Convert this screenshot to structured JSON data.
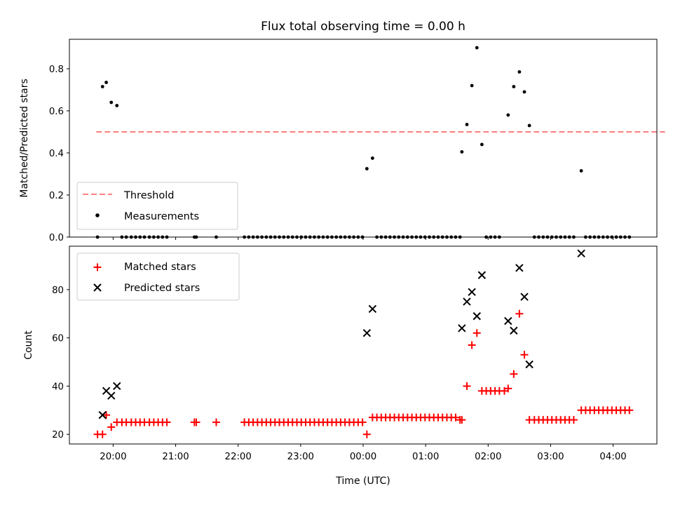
{
  "chart_data": [
    {
      "type": "scatter",
      "title": "Flux total observing time = 0.00 h",
      "xlabel": "",
      "ylabel": "Matched/Predicted stars",
      "x_unit": "hours since 19:00 UTC",
      "xlim": [
        0.3,
        9.7
      ],
      "ylim": [
        0,
        0.94
      ],
      "yticks": [
        "0.0",
        "0.2",
        "0.4",
        "0.6",
        "0.8"
      ],
      "ytick_values": [
        0,
        0.2,
        0.4,
        0.6,
        0.8
      ],
      "grid": false,
      "legend": "lower-left",
      "threshold": {
        "name": "Threshold",
        "value": 0.5,
        "x_range": [
          0.73,
          9.83
        ],
        "color": "#ff8080"
      },
      "series": [
        {
          "name": "Measurements",
          "color": "#000000",
          "points": [
            [
              0.75,
              0
            ],
            [
              0.83,
              0.715
            ],
            [
              0.89,
              0.735
            ],
            [
              0.97,
              0.64
            ],
            [
              1.06,
              0.625
            ],
            [
              1.14,
              0
            ],
            [
              1.21,
              0
            ],
            [
              1.29,
              0
            ],
            [
              1.36,
              0
            ],
            [
              1.43,
              0
            ],
            [
              1.5,
              0
            ],
            [
              1.58,
              0
            ],
            [
              1.65,
              0
            ],
            [
              1.72,
              0
            ],
            [
              1.79,
              0
            ],
            [
              1.86,
              0
            ],
            [
              2.3,
              0
            ],
            [
              2.33,
              0
            ],
            [
              2.65,
              0
            ],
            [
              3.1,
              0
            ],
            [
              3.17,
              0
            ],
            [
              3.24,
              0
            ],
            [
              3.31,
              0
            ],
            [
              3.38,
              0
            ],
            [
              3.45,
              0
            ],
            [
              3.52,
              0
            ],
            [
              3.59,
              0
            ],
            [
              3.66,
              0
            ],
            [
              3.73,
              0
            ],
            [
              3.8,
              0
            ],
            [
              3.87,
              0
            ],
            [
              3.94,
              0
            ],
            [
              4.01,
              0
            ],
            [
              4.08,
              0
            ],
            [
              4.15,
              0
            ],
            [
              4.22,
              0
            ],
            [
              4.29,
              0
            ],
            [
              4.36,
              0
            ],
            [
              4.43,
              0
            ],
            [
              4.5,
              0
            ],
            [
              4.57,
              0
            ],
            [
              4.64,
              0
            ],
            [
              4.71,
              0
            ],
            [
              4.78,
              0
            ],
            [
              4.85,
              0
            ],
            [
              4.92,
              0
            ],
            [
              4.99,
              0
            ],
            [
              5.06,
              0.325
            ],
            [
              5.15,
              0.375
            ],
            [
              5.22,
              0
            ],
            [
              5.29,
              0
            ],
            [
              5.36,
              0
            ],
            [
              5.43,
              0
            ],
            [
              5.5,
              0
            ],
            [
              5.57,
              0
            ],
            [
              5.64,
              0
            ],
            [
              5.71,
              0
            ],
            [
              5.78,
              0
            ],
            [
              5.85,
              0
            ],
            [
              5.92,
              0
            ],
            [
              5.99,
              0
            ],
            [
              6.06,
              0
            ],
            [
              6.13,
              0
            ],
            [
              6.2,
              0
            ],
            [
              6.27,
              0
            ],
            [
              6.34,
              0
            ],
            [
              6.41,
              0
            ],
            [
              6.48,
              0
            ],
            [
              6.55,
              0
            ],
            [
              6.58,
              0.405
            ],
            [
              6.66,
              0.535
            ],
            [
              6.74,
              0.72
            ],
            [
              6.82,
              0.9
            ],
            [
              6.9,
              0.44
            ],
            [
              6.97,
              0
            ],
            [
              7.04,
              0
            ],
            [
              7.11,
              0
            ],
            [
              7.18,
              0
            ],
            [
              7.32,
              0.58
            ],
            [
              7.41,
              0.715
            ],
            [
              7.5,
              0.785
            ],
            [
              7.58,
              0.69
            ],
            [
              7.66,
              0.53
            ],
            [
              7.74,
              0
            ],
            [
              7.81,
              0
            ],
            [
              7.88,
              0
            ],
            [
              7.95,
              0
            ],
            [
              8.02,
              0
            ],
            [
              8.09,
              0
            ],
            [
              8.16,
              0
            ],
            [
              8.23,
              0
            ],
            [
              8.3,
              0
            ],
            [
              8.37,
              0
            ],
            [
              8.49,
              0.315
            ],
            [
              8.56,
              0
            ],
            [
              8.63,
              0
            ],
            [
              8.7,
              0
            ],
            [
              8.77,
              0
            ],
            [
              8.84,
              0
            ],
            [
              8.91,
              0
            ],
            [
              8.98,
              0
            ],
            [
              9.05,
              0
            ],
            [
              9.12,
              0
            ],
            [
              9.19,
              0
            ],
            [
              9.26,
              0
            ]
          ]
        }
      ]
    },
    {
      "type": "scatter",
      "title": "",
      "xlabel": "Time (UTC)",
      "ylabel": "Count",
      "x_unit": "hours since 19:00 UTC",
      "xlim": [
        0.3,
        9.7
      ],
      "ylim": [
        16,
        98
      ],
      "xtick_values": [
        1,
        2,
        3,
        4,
        5,
        6,
        7,
        8,
        9
      ],
      "xticks": [
        "20:00",
        "21:00",
        "22:00",
        "23:00",
        "00:00",
        "01:00",
        "02:00",
        "03:00",
        "04:00"
      ],
      "yticks": [
        "20",
        "40",
        "60",
        "80"
      ],
      "ytick_values": [
        20,
        40,
        60,
        80
      ],
      "grid": false,
      "legend": "top-left",
      "series": [
        {
          "name": "Matched stars",
          "marker": "plus",
          "color": "#ff0000",
          "points": [
            [
              0.75,
              20
            ],
            [
              0.83,
              20
            ],
            [
              0.89,
              28
            ],
            [
              0.97,
              23
            ],
            [
              1.06,
              25
            ],
            [
              1.14,
              25
            ],
            [
              1.21,
              25
            ],
            [
              1.29,
              25
            ],
            [
              1.36,
              25
            ],
            [
              1.43,
              25
            ],
            [
              1.5,
              25
            ],
            [
              1.58,
              25
            ],
            [
              1.65,
              25
            ],
            [
              1.72,
              25
            ],
            [
              1.79,
              25
            ],
            [
              1.86,
              25
            ],
            [
              2.3,
              25
            ],
            [
              2.33,
              25
            ],
            [
              2.65,
              25
            ],
            [
              3.1,
              25
            ],
            [
              3.17,
              25
            ],
            [
              3.24,
              25
            ],
            [
              3.31,
              25
            ],
            [
              3.38,
              25
            ],
            [
              3.45,
              25
            ],
            [
              3.52,
              25
            ],
            [
              3.59,
              25
            ],
            [
              3.66,
              25
            ],
            [
              3.73,
              25
            ],
            [
              3.8,
              25
            ],
            [
              3.87,
              25
            ],
            [
              3.94,
              25
            ],
            [
              4.01,
              25
            ],
            [
              4.08,
              25
            ],
            [
              4.15,
              25
            ],
            [
              4.22,
              25
            ],
            [
              4.29,
              25
            ],
            [
              4.36,
              25
            ],
            [
              4.43,
              25
            ],
            [
              4.5,
              25
            ],
            [
              4.57,
              25
            ],
            [
              4.64,
              25
            ],
            [
              4.71,
              25
            ],
            [
              4.78,
              25
            ],
            [
              4.85,
              25
            ],
            [
              4.92,
              25
            ],
            [
              4.99,
              25
            ],
            [
              5.06,
              20
            ],
            [
              5.15,
              27
            ],
            [
              5.22,
              27
            ],
            [
              5.29,
              27
            ],
            [
              5.36,
              27
            ],
            [
              5.43,
              27
            ],
            [
              5.5,
              27
            ],
            [
              5.57,
              27
            ],
            [
              5.64,
              27
            ],
            [
              5.71,
              27
            ],
            [
              5.78,
              27
            ],
            [
              5.85,
              27
            ],
            [
              5.92,
              27
            ],
            [
              5.99,
              27
            ],
            [
              6.06,
              27
            ],
            [
              6.13,
              27
            ],
            [
              6.2,
              27
            ],
            [
              6.27,
              27
            ],
            [
              6.34,
              27
            ],
            [
              6.41,
              27
            ],
            [
              6.48,
              27
            ],
            [
              6.55,
              26
            ],
            [
              6.58,
              26
            ],
            [
              6.66,
              40
            ],
            [
              6.74,
              57
            ],
            [
              6.82,
              62
            ],
            [
              6.9,
              38
            ],
            [
              6.97,
              38
            ],
            [
              7.04,
              38
            ],
            [
              7.11,
              38
            ],
            [
              7.18,
              38
            ],
            [
              7.26,
              38
            ],
            [
              7.32,
              39
            ],
            [
              7.41,
              45
            ],
            [
              7.5,
              70
            ],
            [
              7.58,
              53
            ],
            [
              7.66,
              26
            ],
            [
              7.74,
              26
            ],
            [
              7.81,
              26
            ],
            [
              7.88,
              26
            ],
            [
              7.95,
              26
            ],
            [
              8.02,
              26
            ],
            [
              8.09,
              26
            ],
            [
              8.16,
              26
            ],
            [
              8.23,
              26
            ],
            [
              8.3,
              26
            ],
            [
              8.37,
              26
            ],
            [
              8.49,
              30
            ],
            [
              8.56,
              30
            ],
            [
              8.63,
              30
            ],
            [
              8.7,
              30
            ],
            [
              8.77,
              30
            ],
            [
              8.84,
              30
            ],
            [
              8.91,
              30
            ],
            [
              8.98,
              30
            ],
            [
              9.05,
              30
            ],
            [
              9.12,
              30
            ],
            [
              9.19,
              30
            ],
            [
              9.26,
              30
            ]
          ]
        },
        {
          "name": "Predicted stars",
          "marker": "x",
          "color": "#000000",
          "points": [
            [
              0.83,
              28
            ],
            [
              0.89,
              38
            ],
            [
              0.97,
              36
            ],
            [
              1.06,
              40
            ],
            [
              5.06,
              62
            ],
            [
              5.15,
              72
            ],
            [
              6.58,
              64
            ],
            [
              6.66,
              75
            ],
            [
              6.74,
              79
            ],
            [
              6.82,
              69
            ],
            [
              6.9,
              86
            ],
            [
              7.32,
              67
            ],
            [
              7.41,
              63
            ],
            [
              7.5,
              89
            ],
            [
              7.58,
              77
            ],
            [
              7.66,
              49
            ],
            [
              8.49,
              95
            ]
          ]
        }
      ]
    }
  ]
}
